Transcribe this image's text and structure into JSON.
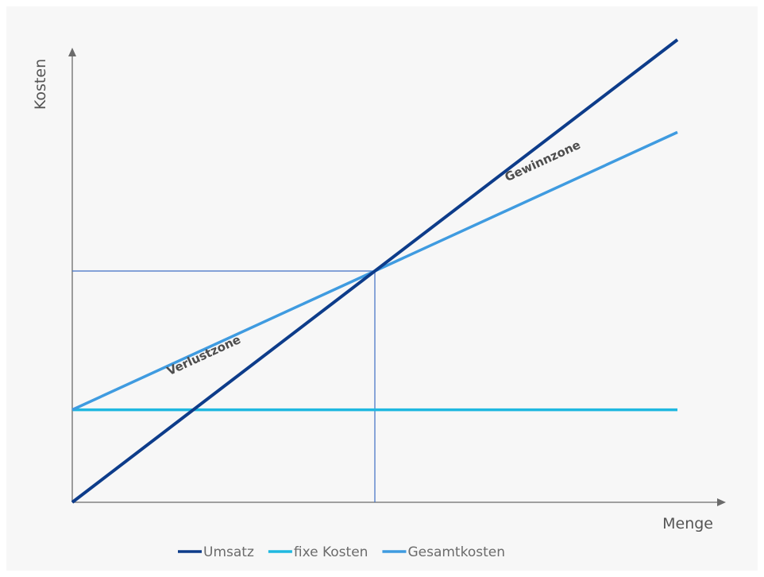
{
  "chart_data": {
    "type": "line",
    "title": "",
    "xlabel": "Menge",
    "ylabel": "Kosten",
    "xlim": [
      0,
      100
    ],
    "ylim": [
      0,
      100
    ],
    "grid": false,
    "legend": "bottom-center",
    "series": [
      {
        "name": "Umsatz",
        "color": "#0d3c8a",
        "x": [
          0,
          100
        ],
        "y": [
          0,
          100
        ]
      },
      {
        "name": "fixe Kosten",
        "color": "#1fb8e0",
        "x": [
          0,
          100
        ],
        "y": [
          20,
          20
        ]
      },
      {
        "name": "Gesamtkosten",
        "color": "#3f9be0",
        "x": [
          0,
          100
        ],
        "y": [
          20,
          80
        ]
      }
    ],
    "break_even": {
      "x": 50,
      "y": 50
    },
    "annotations": [
      {
        "text": "Verlustzone",
        "x": 22,
        "y": 31
      },
      {
        "text": "Gewinnzone",
        "x": 78,
        "y": 73
      }
    ]
  }
}
